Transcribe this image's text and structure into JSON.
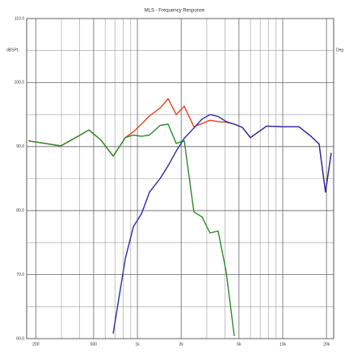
{
  "chart_data": {
    "type": "line",
    "title": "MLS - Frequency Response",
    "y_label": "dBSPL",
    "y2_label": "Deg",
    "xscale": "log",
    "grid": true,
    "x": [
      178,
      230,
      297,
      383,
      464,
      562,
      681,
      825,
      938,
      1066,
      1212,
      1431,
      1626,
      1848,
      2100,
      2448,
      2783,
      3162,
      3594,
      4084,
      4642,
      5275,
      5995,
      7743,
      10000,
      12915,
      15650,
      17783,
      19690,
      21544
    ],
    "series": [
      {
        "name": "Red",
        "color": "#e8401c",
        "values": [
          90.9,
          90.5,
          90.1,
          91.5,
          92.6,
          91.0,
          88.5,
          91.4,
          92.3,
          93.5,
          94.8,
          96.0,
          97.5,
          95.0,
          96.3,
          93.1,
          93.6,
          94.1,
          93.9,
          93.8,
          93.5,
          93.0,
          91.4,
          93.2,
          93.1,
          93.1,
          91.6,
          90.4,
          82.9,
          89.0
        ]
      },
      {
        "name": "Green",
        "color": "#2a8a2a",
        "values": [
          90.9,
          90.5,
          90.1,
          91.5,
          92.6,
          91.0,
          88.5,
          91.4,
          91.8,
          91.6,
          91.8,
          93.3,
          93.5,
          90.5,
          90.9,
          79.8,
          79.0,
          76.5,
          76.8,
          70.4,
          60.4,
          null,
          null,
          null,
          null,
          null,
          null,
          null,
          null,
          null
        ]
      },
      {
        "name": "Blue",
        "color": "#2a2aa8",
        "values": [
          null,
          null,
          null,
          null,
          null,
          null,
          60.8,
          72.5,
          77.5,
          79.5,
          82.9,
          85.0,
          87.0,
          89.3,
          91.3,
          92.9,
          94.3,
          95.0,
          94.7,
          93.9,
          93.5,
          93.0,
          91.4,
          93.2,
          93.1,
          93.1,
          91.6,
          90.4,
          82.9,
          89.0
        ]
      }
    ],
    "xlim": [
      173,
      22400
    ],
    "xticks": [
      200,
      500,
      {
        "value": 1000,
        "label": "1k"
      },
      {
        "value": 2000,
        "label": "2k"
      },
      {
        "value": 5000,
        "label": "5k"
      },
      {
        "value": 10000,
        "label": "10k"
      },
      {
        "value": 20000,
        "label": "20k"
      }
    ],
    "xminor": [
      300,
      400,
      600,
      700,
      800,
      900,
      3000,
      4000,
      6000,
      7000,
      8000,
      9000
    ],
    "ylim": [
      60,
      110
    ],
    "yticks": [
      {
        "value": 60,
        "label": "60.0"
      },
      {
        "value": 70,
        "label": "70.0"
      },
      {
        "value": 80,
        "label": "80.0"
      },
      {
        "value": 90,
        "label": "90.0"
      },
      {
        "value": 100,
        "label": "100.0"
      },
      {
        "value": 110,
        "label": "110.0"
      }
    ],
    "yminor": [
      65,
      75,
      85,
      95,
      105
    ]
  }
}
